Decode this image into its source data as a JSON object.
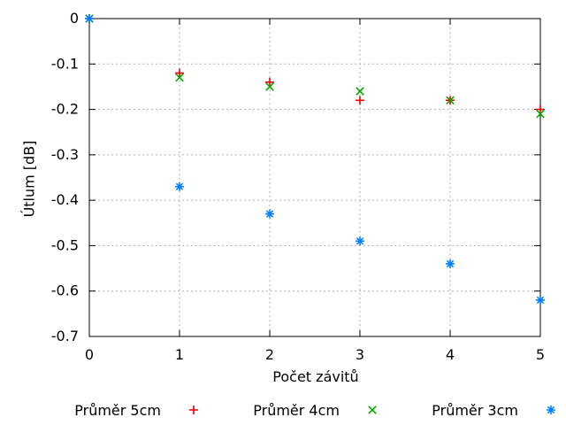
{
  "window": {
    "background": "#ffffff"
  },
  "chart_data": {
    "type": "scatter",
    "title": "",
    "xlabel": "Počet závitů",
    "ylabel": "Útlum [dB]",
    "xlim": [
      0,
      5
    ],
    "ylim": [
      -0.7,
      0
    ],
    "x_tick_labels": [
      "0",
      "1",
      "2",
      "3",
      "4",
      "5"
    ],
    "y_tick_labels": [
      "0",
      "-0.1",
      "-0.2",
      "-0.3",
      "-0.4",
      "-0.5",
      "-0.6",
      "-0.7"
    ],
    "grid": true,
    "grid_color": "#b0b0b0",
    "axis_color": "#000000",
    "legend_position": "bottom-center",
    "x": [
      0,
      1,
      2,
      3,
      4,
      5
    ],
    "series": [
      {
        "name": "Průměr 5cm",
        "marker": "plus",
        "color": "#ee0000",
        "values": [
          0,
          -0.12,
          -0.14,
          -0.18,
          -0.18,
          -0.2
        ]
      },
      {
        "name": "Průměr 4cm",
        "marker": "cross",
        "color": "#00ab00",
        "values": [
          0,
          -0.13,
          -0.15,
          -0.16,
          -0.18,
          -0.21
        ]
      },
      {
        "name": "Průměr 3cm",
        "marker": "asterisk",
        "color": "#0080ff",
        "values": [
          0,
          -0.37,
          -0.43,
          -0.49,
          -0.54,
          -0.62
        ]
      }
    ]
  }
}
